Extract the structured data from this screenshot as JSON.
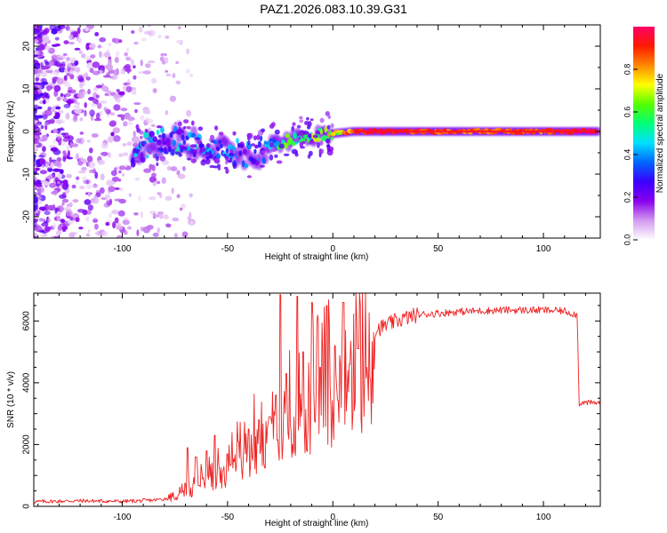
{
  "title": "PAZ1.2026.083.10.39.G31",
  "colors": {
    "snr_line": "#ee2222",
    "axis": "#000000"
  },
  "chart_data": [
    {
      "type": "heatmap",
      "name": "spectrogram",
      "xlabel": "Height of straight line (km)",
      "ylabel": "Frequency (Hz)",
      "xlim": [
        -142,
        127
      ],
      "ylim": [
        -25,
        25
      ],
      "x_ticks": [
        -100,
        -50,
        0,
        50,
        100
      ],
      "x_tick_labels": [
        "-100",
        "-50",
        "0",
        "50",
        "100"
      ],
      "y_ticks": [
        -20,
        -10,
        0,
        10,
        20
      ],
      "y_tick_labels": [
        "-20",
        "-10",
        "0",
        "10",
        "20"
      ],
      "colorbar": {
        "label": "Normalized spectral amplitude",
        "range": [
          0.0,
          1.0
        ],
        "ticks": [
          0.0,
          0.2,
          0.4,
          0.6,
          0.8
        ],
        "tick_labels": [
          "0.0",
          "0.2",
          "0.4",
          "0.6",
          "0.8"
        ],
        "colormap": [
          "#ffffff",
          "#d49af0",
          "#8a00ee",
          "#3a00ff",
          "#0066ff",
          "#00e0ff",
          "#00ff77",
          "#55ff00",
          "#ffff00",
          "#ff8800",
          "#ff1a00",
          "#ff0066"
        ]
      },
      "ridge": {
        "x": [
          -95,
          -85,
          -75,
          -65,
          -55,
          -45,
          -38,
          -30,
          -20,
          -10,
          0,
          10,
          20,
          40,
          60,
          80,
          100,
          110,
          125
        ],
        "freq": [
          -4,
          -3,
          -2,
          -3,
          -4,
          -5,
          -6,
          -3,
          -2,
          -1,
          -0.5,
          0,
          0,
          0,
          0,
          0,
          0,
          0,
          0
        ],
        "amplitude": [
          0.35,
          0.35,
          0.4,
          0.4,
          0.35,
          0.3,
          0.3,
          0.4,
          0.55,
          0.6,
          0.7,
          0.85,
          0.95,
          0.9,
          0.85,
          0.85,
          0.85,
          0.95,
          1.0
        ]
      }
    },
    {
      "type": "line",
      "name": "snr",
      "xlabel": "Height of straight line (km)",
      "ylabel": "SNR (10 * v/v)",
      "xlim": [
        -142,
        127
      ],
      "ylim": [
        0,
        6900
      ],
      "x_ticks": [
        -100,
        -50,
        0,
        50,
        100
      ],
      "x_tick_labels": [
        "-100",
        "-50",
        "0",
        "50",
        "100"
      ],
      "y_ticks": [
        0,
        2000,
        4000,
        6000
      ],
      "y_tick_labels": [
        "0",
        "2000",
        "4000",
        "6000"
      ],
      "series": [
        {
          "name": "SNR",
          "x": [
            -142,
            -120,
            -100,
            -85,
            -78,
            -72,
            -68,
            -60,
            -50,
            -40,
            -30,
            -25,
            -20,
            -10,
            0,
            10,
            20,
            30,
            40,
            50,
            60,
            80,
            100,
            110,
            116,
            117,
            118,
            127
          ],
          "y": [
            150,
            180,
            160,
            200,
            260,
            450,
            700,
            1000,
            1400,
            2300,
            2900,
            3400,
            3700,
            3900,
            4500,
            4900,
            5700,
            6000,
            6200,
            6250,
            6300,
            6350,
            6350,
            6320,
            6200,
            3300,
            3350,
            3350
          ]
        }
      ],
      "spikes": {
        "x": [
          -69,
          -65,
          -60,
          -56,
          -50,
          -45,
          -40,
          -35,
          -30,
          -27,
          -25,
          -22,
          -17,
          -14,
          -10,
          -6,
          -3,
          1,
          5,
          8,
          12
        ],
        "y": [
          1900,
          1600,
          1800,
          2300,
          1700,
          2100,
          2500,
          2800,
          2900,
          3600,
          6850,
          4300,
          6800,
          5000,
          6600,
          4500,
          6500,
          5200,
          6600,
          4600,
          5100
        ]
      }
    }
  ]
}
